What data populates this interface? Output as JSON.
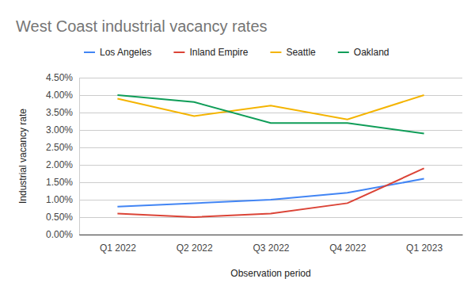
{
  "chart_data": {
    "type": "line",
    "title": "West Coast industrial vacancy rates",
    "x_label": "Observation period",
    "y_label": "Industrial vacancy rate",
    "categories": [
      "Q1 2022",
      "Q2 2022",
      "Q3 2022",
      "Q4 2022",
      "Q1 2023"
    ],
    "series": [
      {
        "name": "Los Angeles",
        "color": "#4285f4",
        "values": [
          0.8,
          0.9,
          1.0,
          1.2,
          1.6
        ]
      },
      {
        "name": "Inland Empire",
        "color": "#db4437",
        "values": [
          0.6,
          0.5,
          0.6,
          0.9,
          1.9
        ]
      },
      {
        "name": "Seattle",
        "color": "#f4b400",
        "values": [
          3.9,
          3.4,
          3.7,
          3.3,
          4.0
        ]
      },
      {
        "name": "Oakland",
        "color": "#0f9d58",
        "values": [
          4.0,
          3.8,
          3.2,
          3.2,
          2.9
        ]
      }
    ],
    "ylim": [
      0,
      4.5
    ],
    "yticks": [
      {
        "value": 0,
        "label": "0.00%"
      },
      {
        "value": 0.5,
        "label": "0.50%"
      },
      {
        "value": 1,
        "label": "1.00%"
      },
      {
        "value": 1.5,
        "label": "1.50%"
      },
      {
        "value": 2,
        "label": "2.00%"
      },
      {
        "value": 2.5,
        "label": "2.50%"
      },
      {
        "value": 3,
        "label": "3.00%"
      },
      {
        "value": 3.5,
        "label": "3.50%"
      },
      {
        "value": 4,
        "label": "4.00%"
      },
      {
        "value": 4.5,
        "label": "4.50%"
      }
    ],
    "grid": true,
    "legend": "top",
    "marker": "none",
    "line_style": "solid"
  }
}
